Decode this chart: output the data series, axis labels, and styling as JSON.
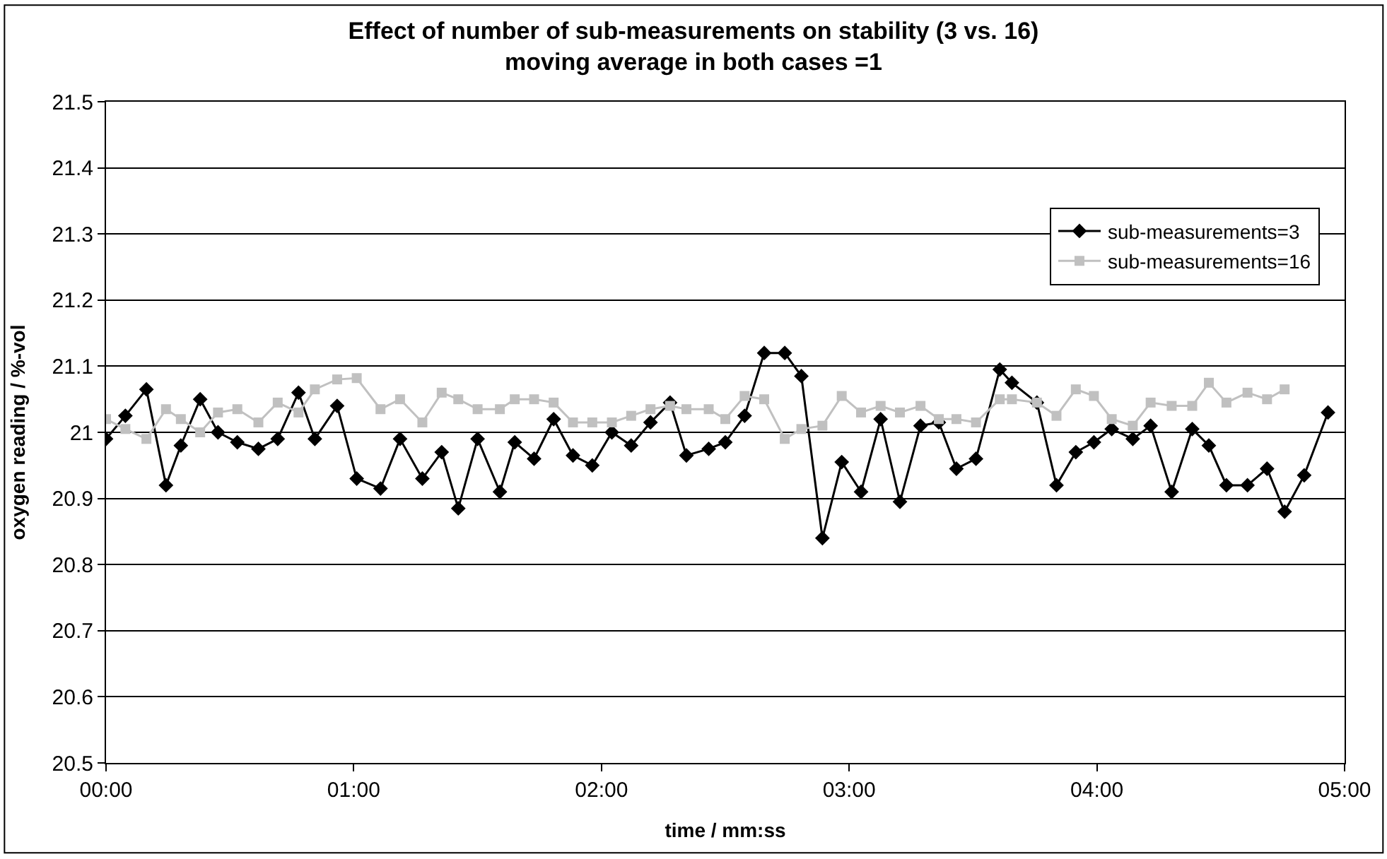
{
  "chart_data": {
    "type": "line",
    "title": "Effect of number of sub-measurements on stability (3 vs. 16)\nmoving average in both cases =1",
    "xlabel": "time / mm:ss",
    "ylabel": "oxygen reading / %-vol",
    "x": [
      0,
      0.078,
      0.163,
      0.242,
      0.302,
      0.38,
      0.452,
      0.53,
      0.615,
      0.693,
      0.777,
      0.843,
      0.933,
      1.012,
      1.108,
      1.187,
      1.277,
      1.355,
      1.422,
      1.5,
      1.59,
      1.65,
      1.728,
      1.807,
      1.885,
      1.963,
      2.042,
      2.12,
      2.198,
      2.277,
      2.343,
      2.433,
      2.5,
      2.578,
      2.657,
      2.74,
      2.807,
      2.892,
      2.97,
      3.048,
      3.127,
      3.205,
      3.288,
      3.362,
      3.433,
      3.512,
      3.608,
      3.657,
      3.758,
      3.837,
      3.915,
      3.988,
      4.06,
      4.145,
      4.217,
      4.302,
      4.385,
      4.452,
      4.523,
      4.608,
      4.687,
      4.758,
      4.837,
      4.933
    ],
    "series": [
      {
        "name": "sub-measurements=3",
        "color": "#000000",
        "marker": "diamond",
        "values": [
          20.99,
          21.025,
          21.065,
          20.92,
          20.98,
          21.05,
          21.0,
          20.985,
          20.975,
          20.99,
          21.06,
          20.99,
          21.04,
          20.93,
          20.915,
          20.99,
          20.93,
          20.97,
          20.885,
          20.99,
          20.91,
          20.985,
          20.96,
          21.02,
          20.965,
          20.95,
          21.0,
          20.98,
          21.015,
          21.045,
          20.965,
          20.975,
          20.985,
          21.025,
          21.12,
          21.12,
          21.085,
          20.84,
          20.955,
          20.91,
          21.02,
          20.895,
          21.01,
          21.015,
          20.945,
          20.96,
          21.095,
          21.075,
          21.045,
          20.92,
          20.97,
          20.985,
          21.005,
          20.99,
          21.01,
          20.91,
          21.005,
          20.98,
          20.92,
          20.92,
          20.945,
          20.88,
          20.935,
          21.03
        ]
      },
      {
        "name": "sub-measurements=16",
        "color": "#c0c0c0",
        "marker": "square",
        "x": [
          0,
          0.078,
          0.163,
          0.242,
          0.302,
          0.38,
          0.452,
          0.53,
          0.615,
          0.693,
          0.777,
          0.843,
          0.933,
          1.012,
          1.108,
          1.187,
          1.277,
          1.355,
          1.422,
          1.5,
          1.59,
          1.65,
          1.728,
          1.807,
          1.885,
          1.963,
          2.042,
          2.12,
          2.198,
          2.277,
          2.343,
          2.433,
          2.5,
          2.578,
          2.657,
          2.74,
          2.807,
          2.892,
          2.97,
          3.048,
          3.127,
          3.205,
          3.288,
          3.362,
          3.433,
          3.512,
          3.608,
          3.657,
          3.758,
          3.837,
          3.915,
          3.988,
          4.06,
          4.145,
          4.217,
          4.302,
          4.385,
          4.452,
          4.523,
          4.608,
          4.687,
          4.758
        ],
        "values": [
          21.02,
          21.005,
          20.99,
          21.035,
          21.02,
          21.0,
          21.03,
          21.035,
          21.015,
          21.045,
          21.03,
          21.065,
          21.08,
          21.082,
          21.035,
          21.05,
          21.015,
          21.06,
          21.05,
          21.035,
          21.035,
          21.05,
          21.05,
          21.045,
          21.015,
          21.015,
          21.015,
          21.025,
          21.035,
          21.04,
          21.035,
          21.035,
          21.02,
          21.055,
          21.05,
          20.99,
          21.005,
          21.01,
          21.055,
          21.03,
          21.04,
          21.03,
          21.04,
          21.02,
          21.02,
          21.015,
          21.05,
          21.05,
          21.045,
          21.025,
          21.065,
          21.055,
          21.02,
          21.01,
          21.045,
          21.04,
          21.04,
          21.075,
          21.045,
          21.06,
          21.05,
          21.065
        ]
      }
    ],
    "xlim": [
      0,
      5
    ],
    "xticks": [
      {
        "value": 0,
        "label": "00:00"
      },
      {
        "value": 1,
        "label": "01:00"
      },
      {
        "value": 2,
        "label": "02:00"
      },
      {
        "value": 3,
        "label": "03:00"
      },
      {
        "value": 4,
        "label": "04:00"
      },
      {
        "value": 5,
        "label": "05:00"
      }
    ],
    "ylim": [
      20.5,
      21.5
    ],
    "yticks": [
      20.5,
      20.6,
      20.7,
      20.8,
      20.9,
      21,
      21.1,
      21.2,
      21.3,
      21.4,
      21.5
    ],
    "grid": "y",
    "legend": "top right",
    "line_style": "solid"
  }
}
